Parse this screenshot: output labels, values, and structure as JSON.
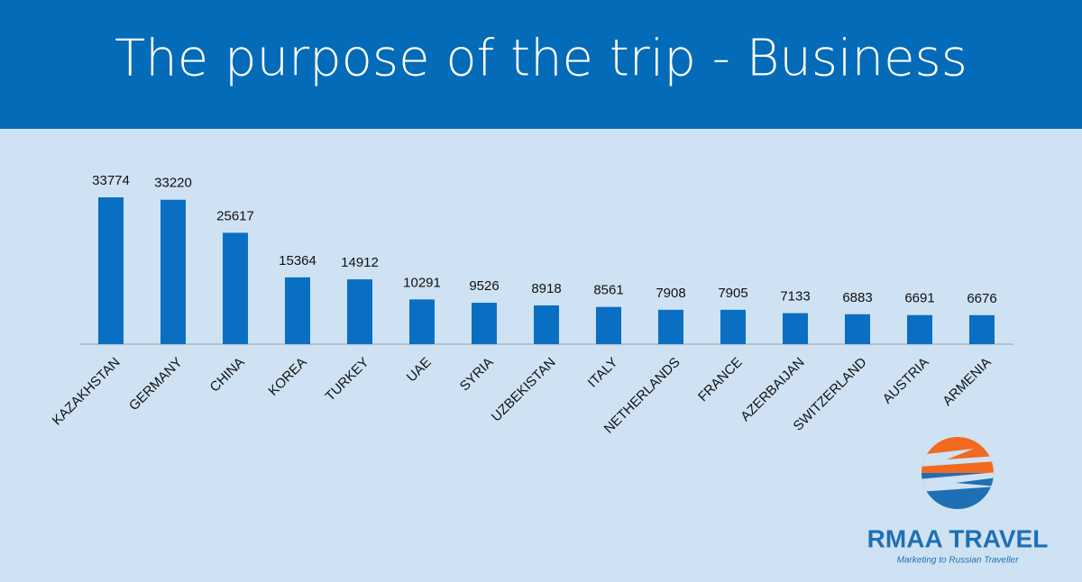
{
  "chart_data": {
    "type": "bar",
    "title": "The purpose of the trip - Business",
    "categories": [
      "KAZAKHSTAN",
      "GERMANY",
      "CHINA",
      "KOREA",
      "TURKEY",
      "UAE",
      "SYRIA",
      "UZBEKISTAN",
      "ITALY",
      "NETHERLANDS",
      "FRANCE",
      "AZERBAIJAN",
      "SWITZERLAND",
      "AUSTRIA",
      "ARMENIA"
    ],
    "values": [
      33774,
      33220,
      25617,
      15364,
      14912,
      10291,
      9526,
      8918,
      8561,
      7908,
      7905,
      7133,
      6883,
      6691,
      6676
    ],
    "color": "#0a6fc2",
    "ylim": [
      0,
      40000
    ]
  },
  "logo": {
    "name": "RMAA TRAVEL",
    "tagline": "Marketing to Russian Traveller"
  }
}
